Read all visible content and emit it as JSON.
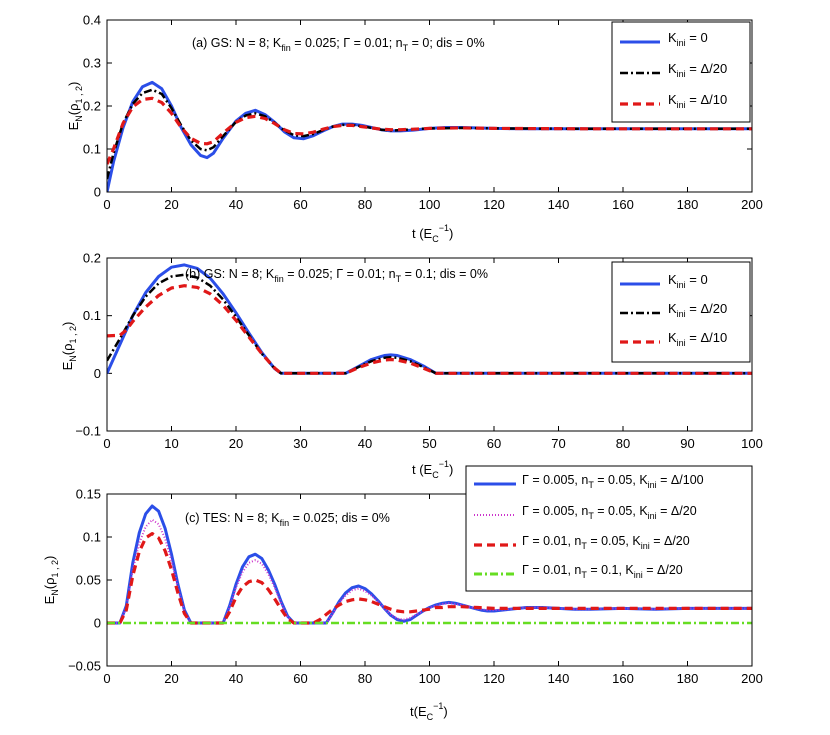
{
  "chart_data": [
    {
      "type": "line",
      "panel": "a",
      "annotation": "(a) GS:  N = 8; K_fin = 0.025; Γ = 0.01; n_T = 0; dis = 0%",
      "xlabel": "t (E_C^-1)",
      "ylabel": "E_N(ρ_{1,2})",
      "xlim": [
        0,
        200
      ],
      "ylim": [
        0,
        0.4
      ],
      "xticks": [
        "0",
        "20",
        "40",
        "60",
        "80",
        "100",
        "120",
        "140",
        "160",
        "180",
        "200"
      ],
      "yticks": [
        "0",
        "0.1",
        "0.2",
        "0.3",
        "0.4"
      ],
      "legend_position": "top-right",
      "series": [
        {
          "name": "K_ini = 0",
          "color": "#2b4ee8",
          "style": "solid",
          "x": [
            0,
            2,
            5,
            8,
            11,
            14,
            17,
            20,
            23,
            26,
            29,
            31,
            33,
            36,
            40,
            43,
            46,
            49,
            52,
            55,
            58,
            61,
            64,
            67,
            70,
            73,
            76,
            79,
            82,
            85,
            88,
            91,
            95,
            100,
            105,
            110,
            120,
            130,
            150,
            170,
            200
          ],
          "y": [
            0.0,
            0.07,
            0.15,
            0.21,
            0.245,
            0.255,
            0.24,
            0.2,
            0.15,
            0.11,
            0.085,
            0.08,
            0.09,
            0.125,
            0.165,
            0.183,
            0.19,
            0.18,
            0.162,
            0.14,
            0.126,
            0.124,
            0.131,
            0.142,
            0.152,
            0.158,
            0.158,
            0.155,
            0.15,
            0.145,
            0.142,
            0.142,
            0.144,
            0.148,
            0.15,
            0.15,
            0.148,
            0.147,
            0.147,
            0.147,
            0.147
          ]
        },
        {
          "name": "K_ini = Δ/20",
          "color": "#000000",
          "style": "dashdot",
          "x": [
            0,
            2,
            5,
            8,
            11,
            14,
            17,
            20,
            23,
            26,
            29,
            31,
            33,
            36,
            40,
            43,
            46,
            49,
            52,
            55,
            58,
            61,
            64,
            67,
            70,
            73,
            76,
            79,
            82,
            85,
            88,
            91,
            95,
            100,
            110,
            120,
            150,
            200
          ],
          "y": [
            0.03,
            0.09,
            0.16,
            0.205,
            0.23,
            0.238,
            0.228,
            0.195,
            0.155,
            0.12,
            0.1,
            0.097,
            0.104,
            0.13,
            0.163,
            0.178,
            0.183,
            0.176,
            0.161,
            0.143,
            0.132,
            0.13,
            0.135,
            0.144,
            0.152,
            0.156,
            0.156,
            0.153,
            0.149,
            0.145,
            0.143,
            0.144,
            0.146,
            0.148,
            0.149,
            0.148,
            0.147,
            0.147
          ]
        },
        {
          "name": "K_ini = Δ/10",
          "color": "#e01818",
          "style": "dashed",
          "x": [
            0,
            2,
            5,
            8,
            11,
            14,
            17,
            20,
            23,
            26,
            29,
            31,
            33,
            36,
            40,
            43,
            46,
            49,
            52,
            55,
            58,
            61,
            64,
            67,
            70,
            73,
            76,
            79,
            82,
            85,
            88,
            91,
            95,
            100,
            110,
            120,
            150,
            200
          ],
          "y": [
            0.065,
            0.1,
            0.16,
            0.198,
            0.215,
            0.218,
            0.208,
            0.183,
            0.15,
            0.125,
            0.113,
            0.112,
            0.117,
            0.137,
            0.162,
            0.173,
            0.176,
            0.171,
            0.159,
            0.145,
            0.136,
            0.135,
            0.139,
            0.146,
            0.152,
            0.155,
            0.155,
            0.152,
            0.149,
            0.146,
            0.145,
            0.145,
            0.146,
            0.148,
            0.149,
            0.148,
            0.147,
            0.147
          ]
        }
      ]
    },
    {
      "type": "line",
      "panel": "b",
      "annotation": "(b) GS:  N = 8; K_fin = 0.025; Γ = 0.01; n_T = 0.1; dis = 0%",
      "xlabel": "t (E_C^-1)",
      "ylabel": "E_N(ρ_{1,2})",
      "xlim": [
        0,
        100
      ],
      "ylim": [
        -0.1,
        0.2
      ],
      "xticks": [
        "0",
        "10",
        "20",
        "30",
        "40",
        "50",
        "60",
        "70",
        "80",
        "90",
        "100"
      ],
      "yticks": [
        "−0.1",
        "0",
        "0.1",
        "0.2"
      ],
      "legend_position": "top-right",
      "series": [
        {
          "name": "K_ini = 0",
          "color": "#2b4ee8",
          "style": "solid",
          "x": [
            0,
            2,
            4,
            6,
            8,
            10,
            12,
            14,
            16,
            18,
            20,
            22,
            24,
            26,
            27,
            37,
            39,
            41,
            43,
            44,
            45,
            47,
            49,
            51,
            100
          ],
          "y": [
            0.0,
            0.05,
            0.1,
            0.14,
            0.168,
            0.184,
            0.188,
            0.182,
            0.165,
            0.138,
            0.105,
            0.07,
            0.036,
            0.008,
            0.0,
            0.0,
            0.012,
            0.024,
            0.031,
            0.032,
            0.031,
            0.024,
            0.013,
            0.0,
            0.0
          ]
        },
        {
          "name": "K_ini = Δ/20",
          "color": "#000000",
          "style": "dashdot",
          "x": [
            0,
            2,
            4,
            6,
            8,
            10,
            12,
            14,
            16,
            18,
            20,
            22,
            24,
            26,
            27,
            37,
            39,
            41,
            43,
            44,
            45,
            47,
            49,
            51,
            100
          ],
          "y": [
            0.022,
            0.06,
            0.1,
            0.133,
            0.156,
            0.168,
            0.171,
            0.166,
            0.152,
            0.128,
            0.098,
            0.066,
            0.034,
            0.008,
            0.0,
            0.0,
            0.011,
            0.021,
            0.027,
            0.028,
            0.027,
            0.021,
            0.011,
            0.0,
            0.0
          ]
        },
        {
          "name": "K_ini = Δ/10",
          "color": "#e01818",
          "style": "dashed",
          "x": [
            0,
            2,
            3,
            4,
            6,
            8,
            10,
            12,
            14,
            16,
            18,
            20,
            22,
            24,
            26,
            27,
            37,
            39,
            41,
            43,
            44,
            45,
            47,
            49,
            51,
            100
          ],
          "y": [
            0.065,
            0.066,
            0.075,
            0.09,
            0.115,
            0.135,
            0.148,
            0.152,
            0.149,
            0.138,
            0.118,
            0.092,
            0.063,
            0.034,
            0.009,
            0.0,
            0.0,
            0.01,
            0.018,
            0.023,
            0.024,
            0.023,
            0.018,
            0.009,
            0.0,
            0.0
          ]
        }
      ]
    },
    {
      "type": "line",
      "panel": "c",
      "annotation": "(c) TES:  N = 8; K_fin = 0.025; dis = 0%",
      "xlabel": "t(E_C^-1)",
      "ylabel": "E_N(ρ_{1,2})",
      "xlim": [
        0,
        200
      ],
      "ylim": [
        -0.05,
        0.15
      ],
      "xticks": [
        "0",
        "20",
        "40",
        "60",
        "80",
        "100",
        "120",
        "140",
        "160",
        "180",
        "200"
      ],
      "yticks": [
        "−0.05",
        "0",
        "0.05",
        "0.1",
        "0.15"
      ],
      "legend_position": "top-right",
      "series": [
        {
          "name": "Γ = 0.005, n_T = 0.05, K_ini = Δ/100",
          "color": "#2b4ee8",
          "style": "solid",
          "x": [
            0,
            4,
            6,
            8,
            10,
            12,
            14,
            16,
            18,
            20,
            22,
            24,
            26,
            36,
            38,
            40,
            42,
            44,
            46,
            48,
            50,
            52,
            54,
            56,
            58,
            68,
            70,
            72,
            74,
            76,
            78,
            80,
            82,
            84,
            86,
            88,
            90,
            92,
            94,
            96,
            98,
            100,
            102,
            104,
            106,
            108,
            110,
            112,
            114,
            116,
            118,
            120,
            125,
            130,
            135,
            140,
            145,
            150,
            160,
            170,
            180,
            200
          ],
          "y": [
            0,
            0,
            0.02,
            0.07,
            0.105,
            0.127,
            0.136,
            0.13,
            0.11,
            0.08,
            0.045,
            0.015,
            0,
            0,
            0.02,
            0.045,
            0.065,
            0.077,
            0.08,
            0.075,
            0.062,
            0.045,
            0.025,
            0.008,
            0,
            0,
            0.012,
            0.025,
            0.035,
            0.041,
            0.043,
            0.04,
            0.034,
            0.026,
            0.017,
            0.009,
            0.004,
            0.002,
            0.004,
            0.009,
            0.014,
            0.018,
            0.021,
            0.023,
            0.024,
            0.023,
            0.021,
            0.019,
            0.017,
            0.015,
            0.014,
            0.014,
            0.016,
            0.018,
            0.018,
            0.017,
            0.016,
            0.016,
            0.017,
            0.016,
            0.017,
            0.017
          ]
        },
        {
          "name": "Γ = 0.005, n_T = 0.05, K_ini = Δ/20",
          "color": "#cc33cc",
          "style": "dotted",
          "x": [
            0,
            4,
            6,
            8,
            10,
            12,
            14,
            16,
            18,
            20,
            22,
            24,
            26,
            36,
            38,
            40,
            42,
            44,
            46,
            48,
            50,
            52,
            54,
            56,
            58,
            68,
            70,
            72,
            74,
            76,
            78,
            80,
            82,
            84,
            86,
            88,
            90,
            92,
            94,
            96,
            98,
            100,
            102,
            104,
            106,
            108,
            110,
            112,
            114,
            116,
            118,
            120,
            125,
            130,
            135,
            140,
            145,
            150,
            160,
            170,
            180,
            200
          ],
          "y": [
            0,
            0,
            0.018,
            0.062,
            0.093,
            0.112,
            0.12,
            0.115,
            0.098,
            0.072,
            0.041,
            0.013,
            0,
            0,
            0.018,
            0.041,
            0.059,
            0.07,
            0.073,
            0.069,
            0.057,
            0.041,
            0.023,
            0.007,
            0,
            0,
            0.011,
            0.023,
            0.032,
            0.038,
            0.04,
            0.037,
            0.032,
            0.025,
            0.017,
            0.01,
            0.005,
            0.004,
            0.006,
            0.01,
            0.014,
            0.018,
            0.02,
            0.022,
            0.023,
            0.022,
            0.021,
            0.019,
            0.017,
            0.016,
            0.015,
            0.015,
            0.016,
            0.018,
            0.018,
            0.017,
            0.016,
            0.016,
            0.017,
            0.016,
            0.017,
            0.017
          ]
        },
        {
          "name": "Γ = 0.01, n_T = 0.05, K_ini = Δ/20",
          "color": "#e01818",
          "style": "dashed",
          "x": [
            0,
            4,
            6,
            8,
            10,
            12,
            14,
            16,
            18,
            20,
            22,
            24,
            26,
            36,
            38,
            40,
            42,
            44,
            46,
            48,
            50,
            52,
            54,
            56,
            58,
            64,
            66,
            68,
            70,
            72,
            74,
            76,
            78,
            80,
            82,
            84,
            86,
            88,
            90,
            92,
            94,
            96,
            98,
            100,
            102,
            104,
            106,
            108,
            110,
            115,
            120,
            130,
            140,
            150,
            200
          ],
          "y": [
            0,
            0,
            0.015,
            0.055,
            0.083,
            0.099,
            0.104,
            0.099,
            0.084,
            0.062,
            0.035,
            0.011,
            0,
            0,
            0.013,
            0.03,
            0.042,
            0.048,
            0.05,
            0.047,
            0.039,
            0.028,
            0.016,
            0.005,
            0,
            0,
            0.004,
            0.01,
            0.016,
            0.021,
            0.025,
            0.027,
            0.028,
            0.027,
            0.025,
            0.022,
            0.019,
            0.016,
            0.014,
            0.013,
            0.013,
            0.014,
            0.015,
            0.016,
            0.018,
            0.018,
            0.019,
            0.019,
            0.019,
            0.018,
            0.017,
            0.017,
            0.017,
            0.017,
            0.017
          ]
        },
        {
          "name": "Γ = 0.01, n_T = 0.1, K_ini = Δ/20",
          "color": "#66dd22",
          "style": "dashdot",
          "x": [
            0,
            200
          ],
          "y": [
            0,
            0
          ]
        }
      ]
    }
  ]
}
